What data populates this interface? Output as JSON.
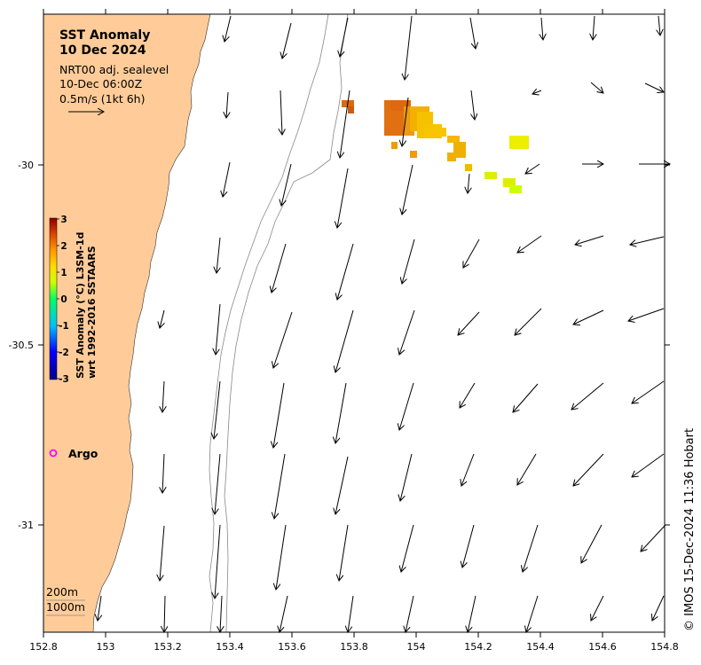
{
  "map": {
    "title": "SST Anomaly",
    "date": "10 Dec 2024",
    "product": "NRT00 adj. sealevel",
    "time": "10-Dec 06:00Z",
    "scale_label": "0.5m/s (1kt 6h)",
    "land_color": "#FFCC99",
    "x_ticks": [
      "152.8",
      "153",
      "153.2",
      "153.4",
      "153.6",
      "153.8",
      "154",
      "154.2",
      "154.4",
      "154.6",
      "154.8"
    ],
    "y_ticks": [
      "-30",
      "-30.5",
      "-31"
    ],
    "colorbar": {
      "title_line1": "SST Anomaly (°C) L3SM-1d",
      "title_line2": "wrt 1992-2016 SSTAARS",
      "ticks": [
        "3",
        "2",
        "1",
        "0",
        "-1",
        "-2",
        "-3"
      ],
      "range": [
        -3,
        3
      ]
    },
    "argo_label": "Argo",
    "argo_color": "#FF00FF",
    "depth_labels": [
      "200m",
      "1000m"
    ],
    "credit": "© IMOS 15-Dec-2024 11:36 Hobart"
  }
}
